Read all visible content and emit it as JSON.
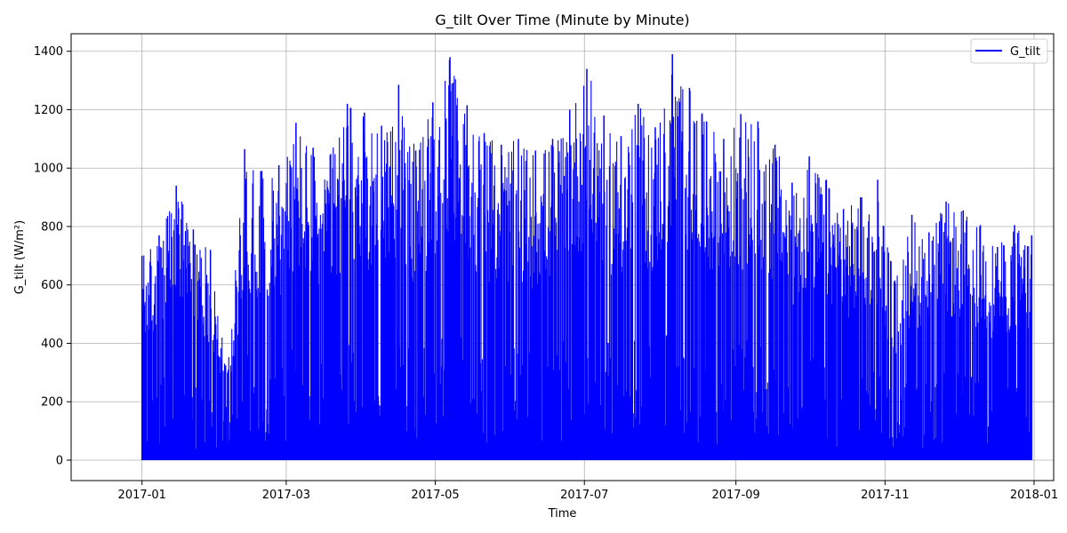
{
  "chart_data": {
    "type": "line",
    "title": "G_tilt Over Time (Minute by Minute)",
    "xlabel": "Time",
    "ylabel": "G_tilt (W/m²)",
    "xlim": [
      "2016-12-03",
      "2018-01-09"
    ],
    "ylim": [
      -70,
      1460
    ],
    "x_ticks": [
      "2017-01",
      "2017-03",
      "2017-05",
      "2017-07",
      "2017-09",
      "2017-11",
      "2018-01"
    ],
    "y_ticks": [
      0,
      200,
      400,
      600,
      800,
      1000,
      1200,
      1400
    ],
    "grid": true,
    "legend": "top-right",
    "series": [
      {
        "name": "G_tilt",
        "color": "#0000ff",
        "x": [
          "2017-01-01",
          "2017-01-08",
          "2017-01-15",
          "2017-01-22",
          "2017-01-29",
          "2017-02-05",
          "2017-02-12",
          "2017-02-19",
          "2017-02-26",
          "2017-03-05",
          "2017-03-12",
          "2017-03-19",
          "2017-03-26",
          "2017-04-02",
          "2017-04-09",
          "2017-04-16",
          "2017-04-23",
          "2017-04-30",
          "2017-05-07",
          "2017-05-14",
          "2017-05-21",
          "2017-05-28",
          "2017-06-04",
          "2017-06-11",
          "2017-06-18",
          "2017-06-25",
          "2017-07-02",
          "2017-07-09",
          "2017-07-16",
          "2017-07-23",
          "2017-07-30",
          "2017-08-06",
          "2017-08-13",
          "2017-08-20",
          "2017-08-27",
          "2017-09-03",
          "2017-09-10",
          "2017-09-17",
          "2017-09-24",
          "2017-10-01",
          "2017-10-08",
          "2017-10-15",
          "2017-10-22",
          "2017-10-29",
          "2017-11-05",
          "2017-11-12",
          "2017-11-19",
          "2017-11-26",
          "2017-12-03",
          "2017-12-10",
          "2017-12-17",
          "2017-12-24",
          "2017-12-31"
        ],
        "values": [
          700,
          770,
          940,
          790,
          720,
          300,
          1065,
          990,
          1010,
          1155,
          1070,
          1045,
          1220,
          1190,
          1145,
          1285,
          1060,
          1225,
          1380,
          1215,
          1120,
          1080,
          1100,
          1060,
          1100,
          1200,
          1340,
          1180,
          1110,
          1220,
          1140,
          1390,
          1275,
          1160,
          1100,
          1185,
          1160,
          1080,
          950,
          1040,
          960,
          860,
          900,
          960,
          615,
          840,
          780,
          885,
          855,
          805,
          730,
          805,
          770
        ]
      }
    ]
  }
}
